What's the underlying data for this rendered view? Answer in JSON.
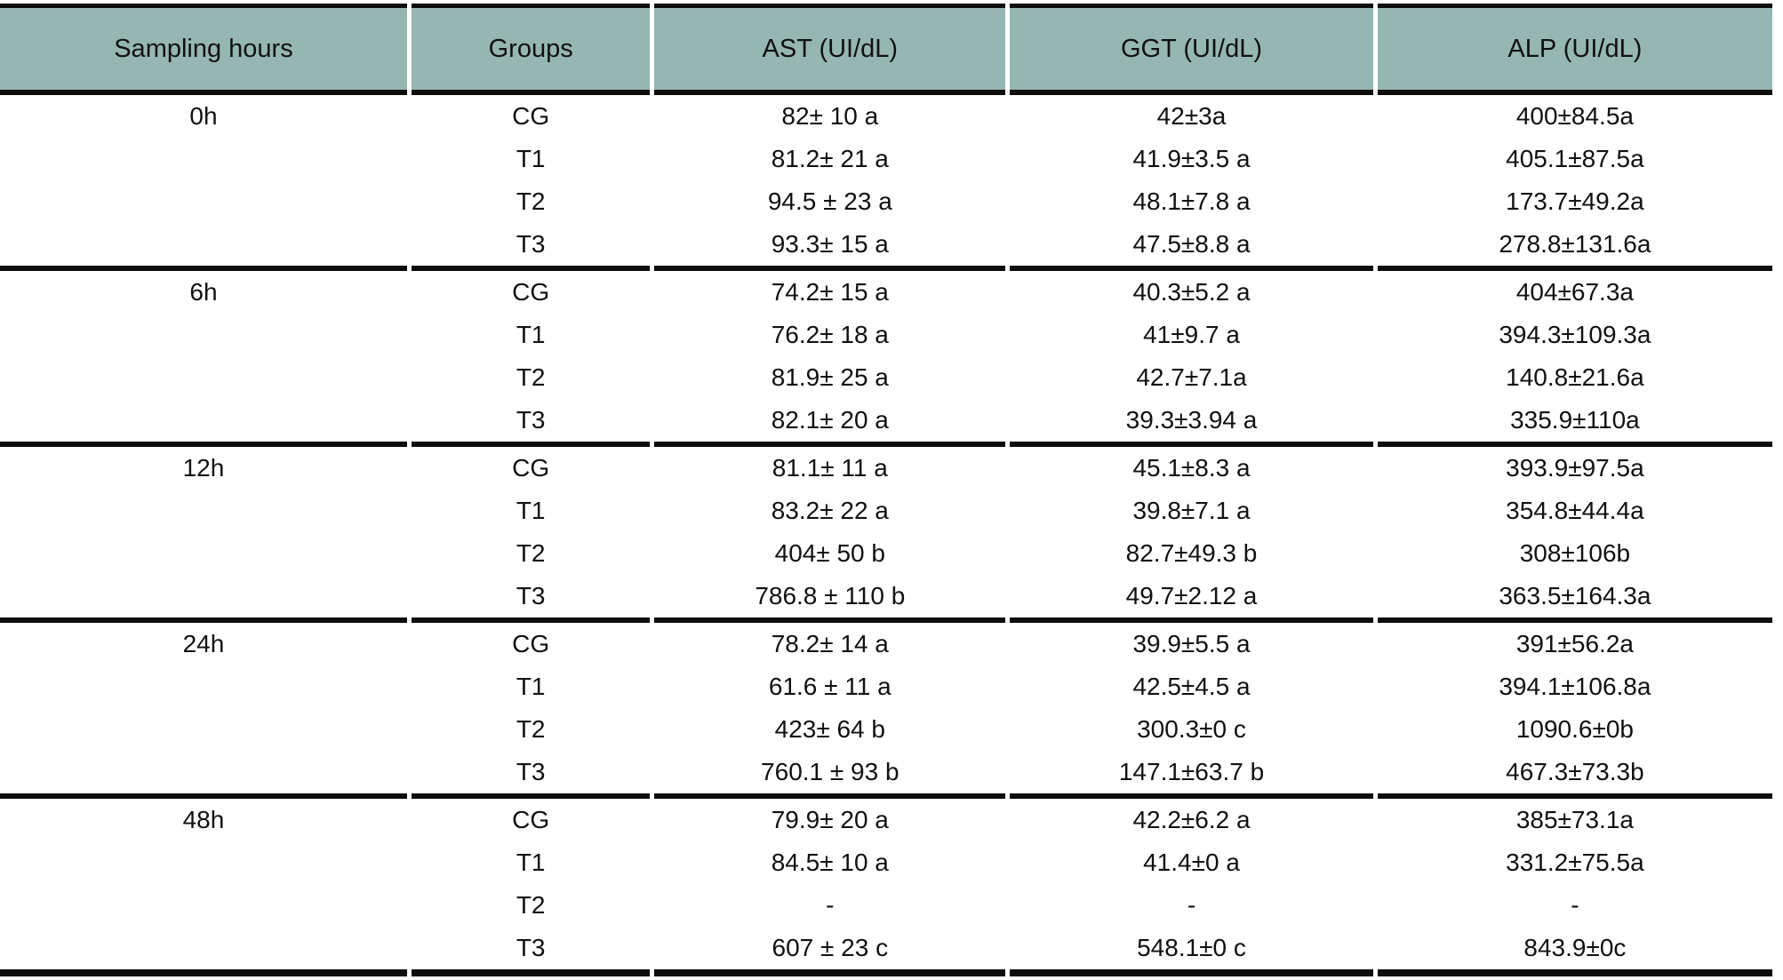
{
  "colors": {
    "header_bg": "#96b6b2",
    "border": "#0d0d0d",
    "text": "#111111"
  },
  "table": {
    "headers": {
      "sampling_hours": "Sampling hours",
      "groups": "Groups",
      "ast": "AST (UI/dL)",
      "ggt": "GGT (UI/dL)",
      "alp": "ALP (UI/dL)"
    },
    "rows": [
      {
        "time": "0h",
        "group": "CG",
        "ast": "82± 10 a",
        "ggt": "42±3a",
        "alp": "400±84.5a"
      },
      {
        "time": "",
        "group": "T1",
        "ast": "81.2± 21 a",
        "ggt": "41.9±3.5 a",
        "alp": "405.1±87.5a"
      },
      {
        "time": "",
        "group": "T2",
        "ast": "94.5 ± 23 a",
        "ggt": "48.1±7.8 a",
        "alp": "173.7±49.2a"
      },
      {
        "time": "",
        "group": "T3",
        "ast": "93.3± 15 a",
        "ggt": "47.5±8.8 a",
        "alp": "278.8±131.6a"
      },
      {
        "time": "6h",
        "group": "CG",
        "ast": "74.2± 15 a",
        "ggt": "40.3±5.2 a",
        "alp": "404±67.3a"
      },
      {
        "time": "",
        "group": "T1",
        "ast": "76.2± 18 a",
        "ggt": "41±9.7 a",
        "alp": "394.3±109.3a"
      },
      {
        "time": "",
        "group": "T2",
        "ast": "81.9± 25 a",
        "ggt": "42.7±7.1a",
        "alp": "140.8±21.6a"
      },
      {
        "time": "",
        "group": "T3",
        "ast": "82.1± 20 a",
        "ggt": "39.3±3.94 a",
        "alp": "335.9±110a"
      },
      {
        "time": "12h",
        "group": "CG",
        "ast": "81.1± 11 a",
        "ggt": "45.1±8.3 a",
        "alp": "393.9±97.5a"
      },
      {
        "time": "",
        "group": "T1",
        "ast": "83.2± 22 a",
        "ggt": "39.8±7.1 a",
        "alp": "354.8±44.4a"
      },
      {
        "time": "",
        "group": "T2",
        "ast": "404± 50 b",
        "ggt": "82.7±49.3 b",
        "alp": "308±106b"
      },
      {
        "time": "",
        "group": "T3",
        "ast": "786.8 ± 110 b",
        "ggt": "49.7±2.12 a",
        "alp": "363.5±164.3a"
      },
      {
        "time": "24h",
        "group": "CG",
        "ast": "78.2± 14 a",
        "ggt": "39.9±5.5 a",
        "alp": "391±56.2a"
      },
      {
        "time": "",
        "group": "T1",
        "ast": "61.6 ± 11 a",
        "ggt": "42.5±4.5 a",
        "alp": "394.1±106.8a"
      },
      {
        "time": "",
        "group": "T2",
        "ast": "423± 64 b",
        "ggt": "300.3±0 c",
        "alp": "1090.6±0b"
      },
      {
        "time": "",
        "group": "T3",
        "ast": "760.1 ± 93 b",
        "ggt": "147.1±63.7 b",
        "alp": "467.3±73.3b"
      },
      {
        "time": "48h",
        "group": "CG",
        "ast": "79.9± 20 a",
        "ggt": "42.2±6.2 a",
        "alp": "385±73.1a"
      },
      {
        "time": "",
        "group": "T1",
        "ast": "84.5± 10 a",
        "ggt": "41.4±0 a",
        "alp": "331.2±75.5a"
      },
      {
        "time": "",
        "group": "T2",
        "ast": "-",
        "ggt": "-",
        "alp": "-"
      },
      {
        "time": "",
        "group": "T3",
        "ast": "607 ± 23 c",
        "ggt": "548.1±0 c",
        "alp": "843.9±0c"
      }
    ]
  }
}
